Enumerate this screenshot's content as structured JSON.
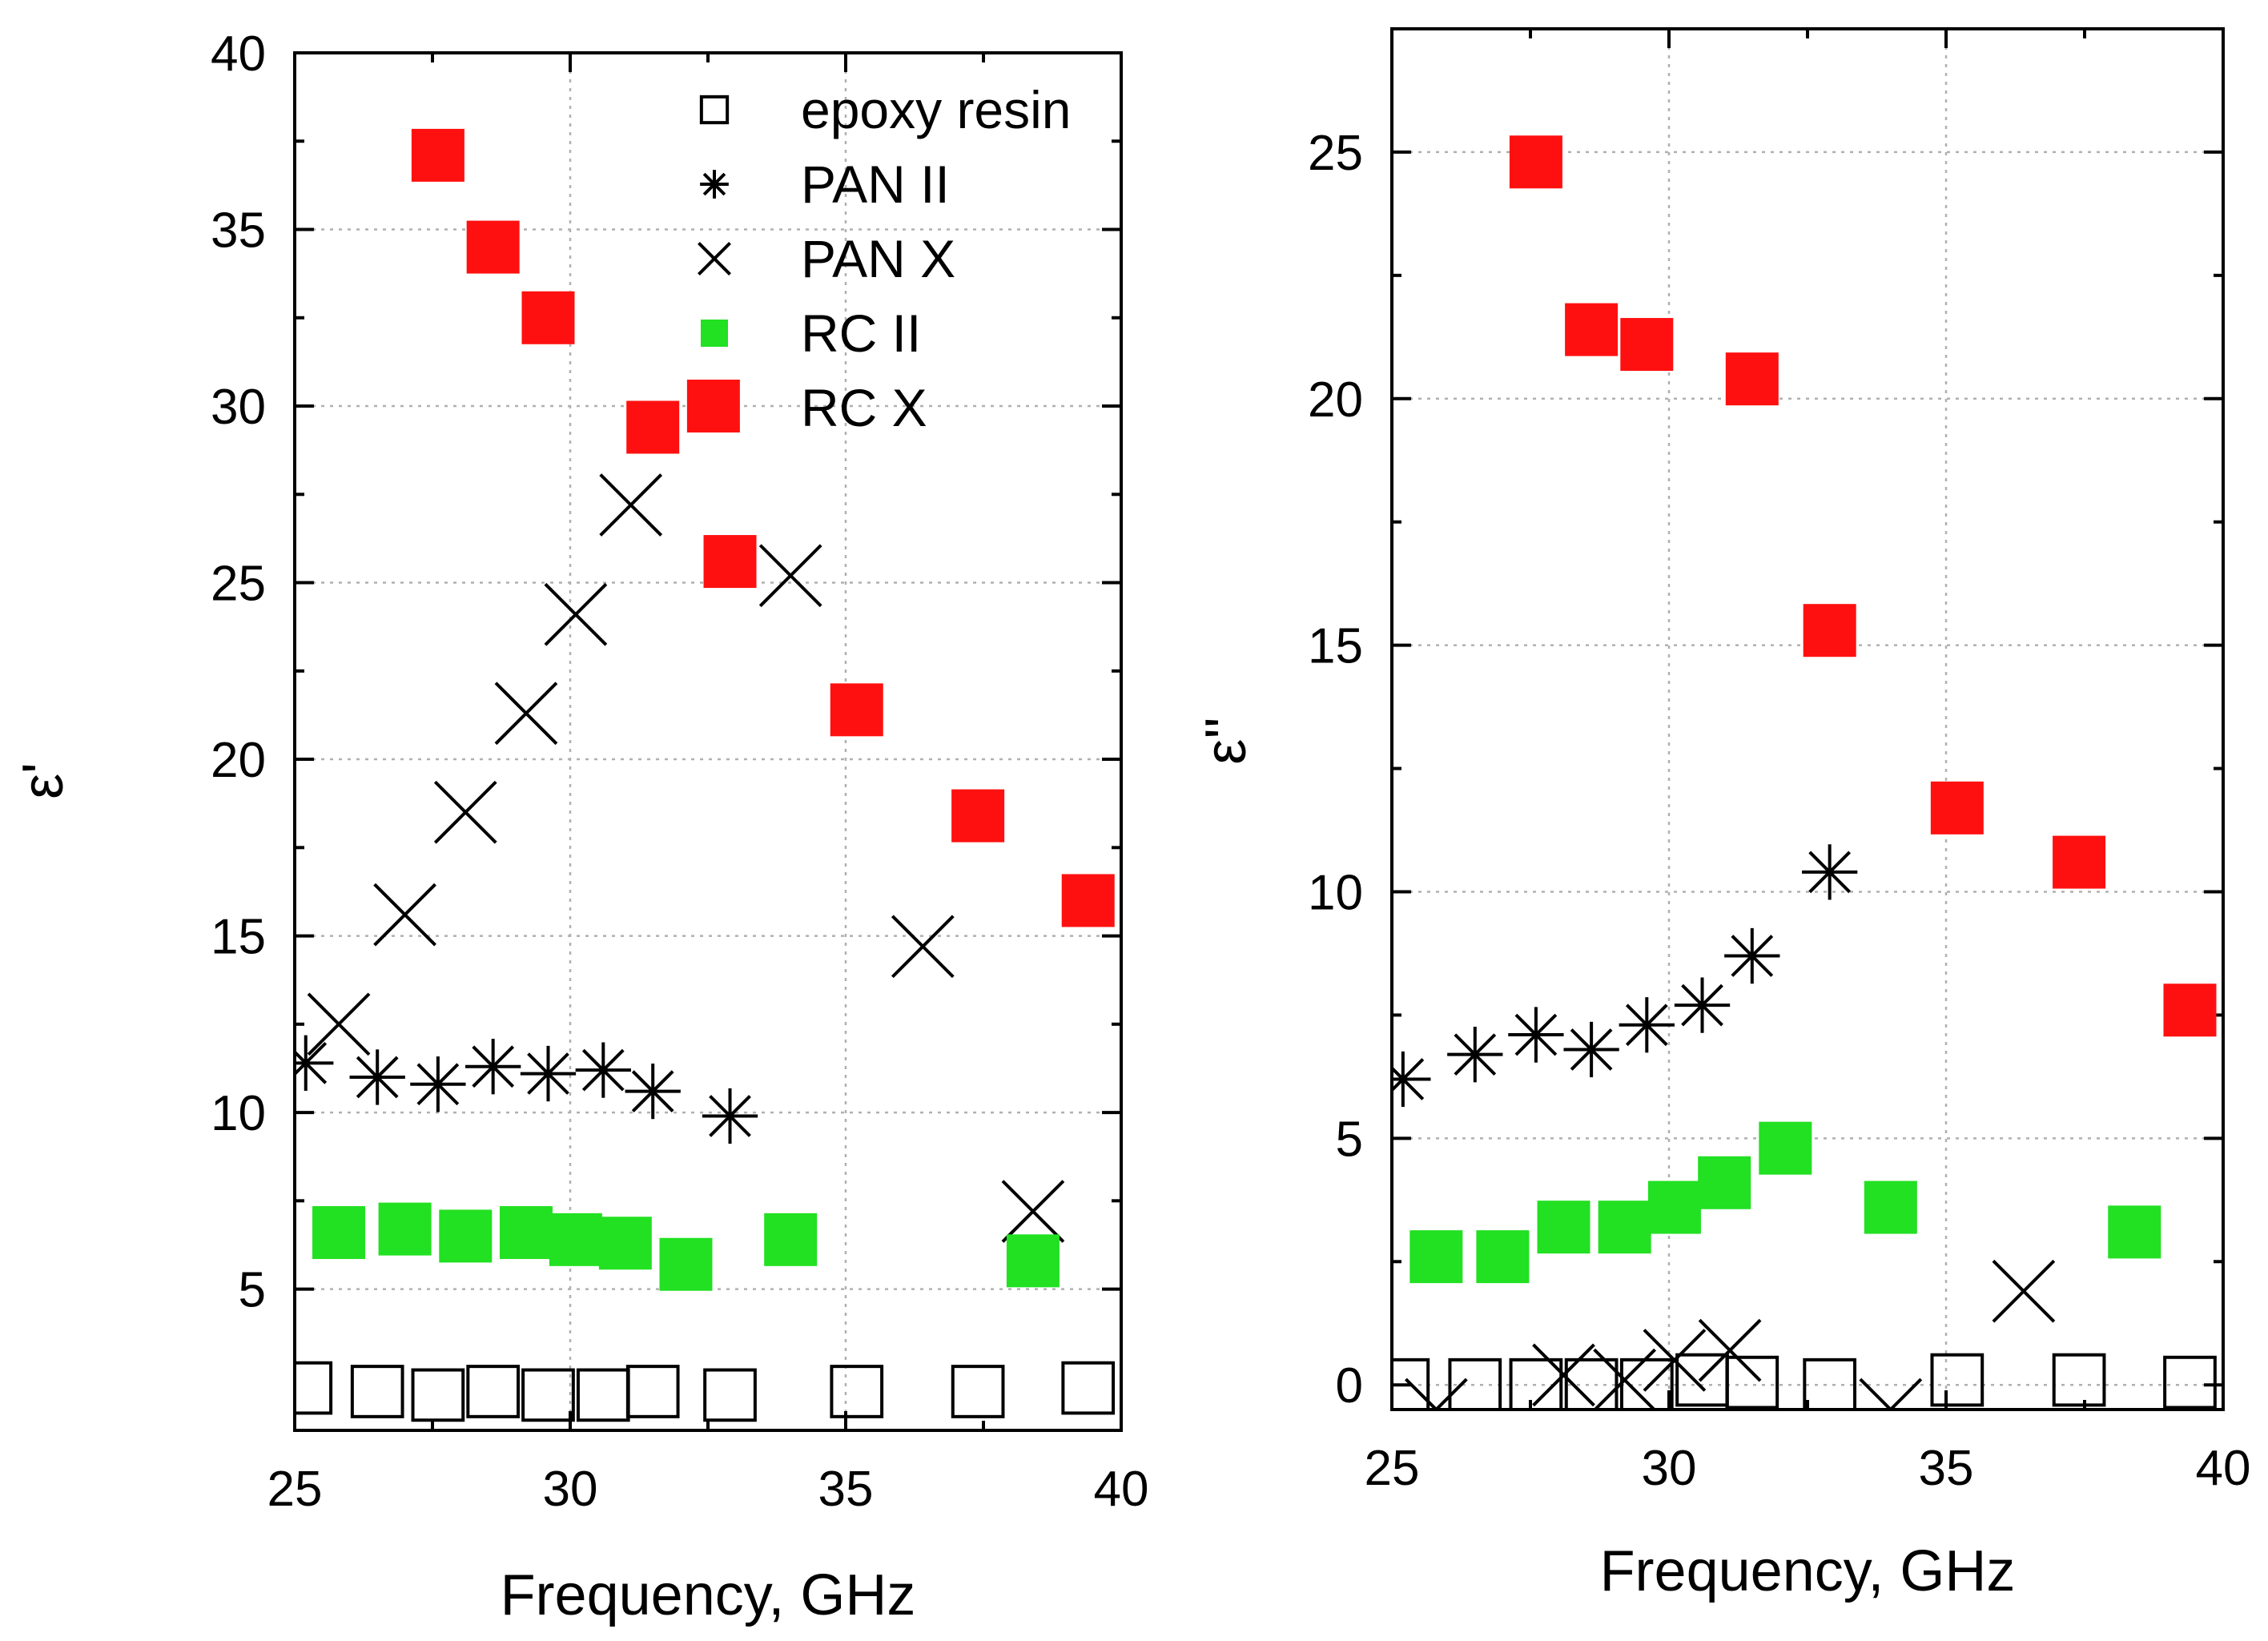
{
  "chart_data": [
    {
      "type": "scatter",
      "panel": "left",
      "xlabel": "Frequency, GHz",
      "ylabel": "ε'",
      "xlim": [
        25,
        40
      ],
      "ylim": [
        1,
        40
      ],
      "xticks": [
        25,
        30,
        35,
        40
      ],
      "yticks": [
        5,
        10,
        15,
        20,
        25,
        30,
        35,
        40
      ],
      "grid": true,
      "legend_position": "top-right",
      "series": [
        {
          "name": "epoxy resin",
          "marker": "open-square",
          "color": "#000000",
          "x": [
            25.2,
            26.5,
            27.6,
            28.6,
            29.6,
            30.6,
            31.5,
            32.9,
            35.2,
            37.4,
            39.4
          ],
          "y": [
            2.2,
            2.1,
            2.0,
            2.1,
            2.0,
            2.0,
            2.1,
            2.0,
            2.1,
            2.1,
            2.2
          ]
        },
        {
          "name": "PAN II",
          "marker": "asterisk",
          "color": "#000000",
          "x": [
            25.2,
            26.5,
            27.6,
            28.6,
            29.6,
            30.6,
            31.5,
            32.9
          ],
          "y": [
            11.4,
            11.0,
            10.8,
            11.3,
            11.1,
            11.2,
            10.6,
            9.9
          ]
        },
        {
          "name": "PAN X",
          "marker": "cross",
          "color": "#000000",
          "x": [
            25.8,
            27.0,
            28.1,
            29.2,
            30.1,
            31.1,
            34.0,
            36.4,
            38.4
          ],
          "y": [
            12.5,
            15.6,
            18.5,
            21.3,
            24.1,
            27.2,
            25.2,
            14.7,
            7.2
          ]
        },
        {
          "name": "RC II",
          "marker": "filled-square",
          "color": "#22e022",
          "x": [
            25.8,
            27.0,
            28.1,
            29.2,
            30.1,
            31.0,
            32.1,
            34.0,
            38.4
          ],
          "y": [
            6.6,
            6.7,
            6.5,
            6.6,
            6.4,
            6.3,
            5.7,
            6.4,
            5.8
          ]
        },
        {
          "name": "RC X",
          "marker": "filled-square",
          "color": "#ff1010",
          "x": [
            27.6,
            28.6,
            29.6,
            31.5,
            32.6,
            32.9,
            35.2,
            37.4,
            39.4
          ],
          "y": [
            37.1,
            34.5,
            32.5,
            29.4,
            30.0,
            25.6,
            21.4,
            18.4,
            16.0
          ]
        }
      ]
    },
    {
      "type": "scatter",
      "panel": "right",
      "xlabel": "Frequency, GHz",
      "ylabel": "ε''",
      "xlim": [
        25,
        40
      ],
      "ylim": [
        -0.5,
        27.5
      ],
      "xticks": [
        25,
        30,
        35,
        40
      ],
      "yticks": [
        0,
        5,
        10,
        15,
        20,
        25
      ],
      "grid": true,
      "series": [
        {
          "name": "epoxy resin",
          "marker": "open-square",
          "color": "#000000",
          "x": [
            25.2,
            26.5,
            27.6,
            28.6,
            29.6,
            30.6,
            31.5,
            32.9,
            35.2,
            37.4,
            39.4
          ],
          "y": [
            0.0,
            0.0,
            0.0,
            0.0,
            0.0,
            0.1,
            0.05,
            0.0,
            0.1,
            0.1,
            0.05
          ]
        },
        {
          "name": "PAN II",
          "marker": "asterisk",
          "color": "#000000",
          "x": [
            25.2,
            26.5,
            27.6,
            28.6,
            29.6,
            30.6,
            31.5,
            32.9
          ],
          "y": [
            6.2,
            6.7,
            7.1,
            6.8,
            7.3,
            7.7,
            8.7,
            10.4
          ]
        },
        {
          "name": "PAN X",
          "marker": "cross",
          "color": "#000000",
          "x": [
            25.8,
            28.1,
            29.2,
            30.1,
            31.1,
            34.0,
            36.4
          ],
          "y": [
            -0.5,
            0.2,
            0.1,
            0.5,
            0.7,
            -0.5,
            1.9
          ]
        },
        {
          "name": "RC II",
          "marker": "filled-square",
          "color": "#22e022",
          "x": [
            25.8,
            27.0,
            28.1,
            29.2,
            30.1,
            31.0,
            32.1,
            34.0,
            38.4
          ],
          "y": [
            2.6,
            2.6,
            3.2,
            3.2,
            3.6,
            4.1,
            4.8,
            3.6,
            3.1
          ]
        },
        {
          "name": "RC X",
          "marker": "filled-square",
          "color": "#ff1010",
          "x": [
            27.6,
            28.6,
            29.6,
            31.5,
            32.9,
            35.2,
            37.4,
            39.4
          ],
          "y": [
            24.8,
            21.4,
            21.1,
            20.4,
            15.3,
            11.7,
            10.6,
            7.6
          ]
        }
      ]
    }
  ]
}
